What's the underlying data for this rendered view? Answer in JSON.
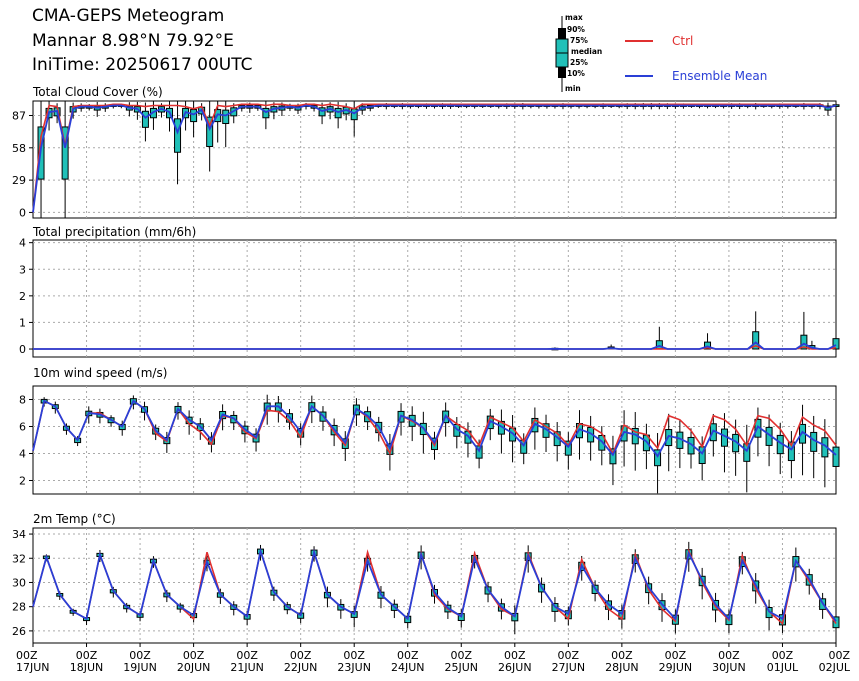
{
  "header": {
    "title": "CMA-GEPS Meteogram",
    "location": "Mannar 8.98°N 79.92°E",
    "init_time": "IniTime: 20250617 00UTC"
  },
  "legend": {
    "box_key": [
      "max",
      "90%",
      "75%",
      "median",
      "25%",
      "10%",
      "min"
    ],
    "ctrl_label": "Ctrl",
    "mean_label": "Ensemble Mean",
    "ctrl_color": "#e03030",
    "mean_color": "#2a3fd6",
    "box_color": "#20c0b8"
  },
  "chart_data": {
    "type": "line",
    "x_labels": [
      {
        "time": "00Z",
        "date": "17JUN"
      },
      {
        "time": "00Z",
        "date": "18JUN"
      },
      {
        "time": "00Z",
        "date": "19JUN"
      },
      {
        "time": "00Z",
        "date": "20JUN"
      },
      {
        "time": "00Z",
        "date": "21JUN"
      },
      {
        "time": "00Z",
        "date": "22JUN"
      },
      {
        "time": "00Z",
        "date": "23JUN"
      },
      {
        "time": "00Z",
        "date": "24JUN"
      },
      {
        "time": "00Z",
        "date": "25JUN"
      },
      {
        "time": "00Z",
        "date": "26JUN"
      },
      {
        "time": "00Z",
        "date": "27JUN"
      },
      {
        "time": "00Z",
        "date": "28JUN"
      },
      {
        "time": "00Z",
        "date": "29JUN"
      },
      {
        "time": "00Z",
        "date": "30JUN"
      },
      {
        "time": "00Z",
        "date": "01JUL"
      },
      {
        "time": "00Z",
        "date": "02JUL"
      }
    ],
    "panels": [
      {
        "title": "Total Cloud Cover (%)",
        "ylim": [
          -5,
          100
        ],
        "yticks": [
          0,
          29,
          58,
          87
        ],
        "ctrl": [
          0,
          68,
          96,
          95,
          60,
          95,
          96,
          96,
          96,
          96,
          97,
          97,
          96,
          96,
          95,
          96,
          96,
          96,
          96,
          95,
          93,
          95,
          78,
          96,
          95,
          96,
          97,
          97,
          97,
          96,
          97,
          97,
          96,
          96,
          97,
          97,
          96,
          97,
          96,
          95,
          93,
          97,
          97,
          97,
          97,
          97,
          97,
          97,
          97,
          97,
          97,
          97,
          97,
          97,
          97,
          97,
          97,
          97,
          97,
          97,
          97,
          97,
          97,
          97,
          97,
          97,
          97,
          97,
          97,
          97,
          97,
          97,
          97,
          97,
          97,
          97,
          97,
          97,
          97,
          97,
          97,
          97,
          97,
          97,
          97,
          97,
          97,
          97,
          97,
          97,
          97,
          97,
          97,
          97,
          97,
          97,
          97,
          97,
          97,
          94,
          96
        ],
        "mean": [
          0,
          58,
          90,
          91,
          58,
          93,
          95,
          95,
          94,
          95,
          96,
          96,
          94,
          93,
          85,
          90,
          93,
          90,
          72,
          90,
          88,
          92,
          75,
          88,
          87,
          91,
          95,
          95,
          95,
          90,
          93,
          94,
          95,
          94,
          96,
          95,
          91,
          93,
          90,
          92,
          89,
          94,
          95,
          96,
          96,
          96,
          96,
          96,
          96,
          96,
          96,
          96,
          96,
          96,
          96,
          96,
          96,
          96,
          96,
          96,
          96,
          96,
          96,
          96,
          96,
          96,
          96,
          96,
          96,
          96,
          96,
          96,
          96,
          96,
          96,
          96,
          96,
          96,
          96,
          96,
          96,
          96,
          96,
          96,
          96,
          96,
          96,
          96,
          96,
          96,
          96,
          96,
          96,
          96,
          96,
          96,
          96,
          96,
          96,
          94,
          96
        ]
      },
      {
        "title": "Total precipitation (mm/6h)",
        "ylim": [
          -0.3,
          4.1
        ],
        "yticks": [
          0,
          1,
          2,
          3,
          4
        ],
        "ctrl": [
          0,
          0,
          0,
          0,
          0,
          0,
          0,
          0,
          0,
          0,
          0,
          0,
          0,
          0,
          0,
          0,
          0,
          0,
          0,
          0,
          0,
          0,
          0,
          0,
          0,
          0,
          0,
          0,
          0,
          0,
          0,
          0,
          0,
          0,
          0,
          0,
          0,
          0,
          0,
          0,
          0,
          0,
          0,
          0,
          0,
          0,
          0,
          0,
          0,
          0,
          0,
          0,
          0,
          0,
          0,
          0,
          0,
          0,
          0,
          0,
          0,
          0,
          0,
          0,
          0,
          0,
          0,
          0,
          0,
          0,
          0,
          0,
          0.02,
          0,
          0,
          0,
          0,
          0,
          0.01,
          0,
          0,
          0,
          0,
          0,
          0.05,
          0,
          0,
          0,
          0,
          0,
          0.12,
          0,
          0,
          0,
          0,
          0,
          0.08,
          0,
          0,
          0,
          0.05
        ],
        "mean": [
          0,
          0,
          0,
          0,
          0,
          0,
          0,
          0,
          0,
          0,
          0,
          0,
          0,
          0,
          0,
          0,
          0,
          0,
          0,
          0,
          0,
          0,
          0,
          0,
          0,
          0,
          0,
          0,
          0,
          0,
          0,
          0,
          0,
          0,
          0,
          0,
          0,
          0,
          0,
          0,
          0,
          0,
          0,
          0,
          0,
          0,
          0,
          0,
          0,
          0,
          0,
          0,
          0,
          0,
          0,
          0,
          0,
          0,
          0,
          0,
          0,
          0,
          0,
          0,
          0,
          0.01,
          0,
          0,
          0,
          0,
          0,
          0,
          0.03,
          0,
          0,
          0,
          0,
          0,
          0.12,
          0,
          0,
          0,
          0,
          0,
          0.1,
          0,
          0,
          0,
          0,
          0,
          0.25,
          0,
          0,
          0,
          0,
          0,
          0.2,
          0.05,
          0,
          0,
          0.15
        ]
      },
      {
        "title": "10m wind speed (m/s)",
        "ylim": [
          1,
          9
        ],
        "yticks": [
          2,
          4,
          6,
          8
        ],
        "ctrl": [
          4.2,
          7.9,
          7.5,
          5.9,
          5.0,
          7.0,
          7.0,
          6.5,
          6.0,
          7.9,
          7.3,
          5.5,
          4.9,
          7.3,
          6.2,
          5.6,
          4.7,
          6.8,
          6.6,
          5.6,
          5.1,
          7.2,
          7.1,
          6.4,
          5.2,
          7.5,
          6.8,
          5.6,
          4.6,
          7.3,
          6.7,
          5.6,
          4.0,
          6.8,
          6.4,
          5.9,
          4.6,
          6.8,
          6.2,
          5.7,
          4.6,
          6.7,
          6.3,
          5.9,
          4.9,
          6.5,
          6.0,
          5.5,
          4.6,
          6.2,
          6.0,
          5.5,
          4.0,
          6.1,
          5.6,
          5.4,
          4.4,
          6.8,
          6.5,
          5.7,
          4.5,
          6.8,
          6.5,
          5.8,
          4.6,
          6.8,
          6.6,
          5.8,
          4.6,
          6.7,
          6.1,
          5.7,
          4.6
        ],
        "mean": [
          4.2,
          7.9,
          7.5,
          5.9,
          5.0,
          7.0,
          6.9,
          6.5,
          6.0,
          7.9,
          7.3,
          5.7,
          5.0,
          7.3,
          6.5,
          6.0,
          5.0,
          6.9,
          6.6,
          5.8,
          5.2,
          7.5,
          7.5,
          6.7,
          5.6,
          7.5,
          6.8,
          5.8,
          4.8,
          7.3,
          6.8,
          6.0,
          4.4,
          6.8,
          6.5,
          5.9,
          4.8,
          6.8,
          5.8,
          5.3,
          4.2,
          6.4,
          6.0,
          5.5,
          4.6,
          6.2,
          5.8,
          5.2,
          4.5,
          5.8,
          5.5,
          4.9,
          3.9,
          5.6,
          5.4,
          4.9,
          3.8,
          5.3,
          5.1,
          4.7,
          4.0,
          5.7,
          5.3,
          4.9,
          4.2,
          6.0,
          5.4,
          4.8,
          4.3,
          5.6,
          5.0,
          4.6,
          3.9
        ]
      },
      {
        "title": "2m Temp (°C)",
        "ylim": [
          25,
          34.5
        ],
        "yticks": [
          26,
          28,
          30,
          32,
          34
        ],
        "ctrl": [
          28.0,
          32.1,
          29.0,
          27.6,
          27.0,
          32.3,
          29.3,
          28.0,
          27.3,
          31.8,
          29.0,
          28.0,
          27.0,
          32.5,
          29.0,
          28.0,
          27.2,
          32.6,
          29.2,
          28.0,
          27.3,
          32.5,
          29.0,
          28.0,
          27.4,
          32.5,
          29.0,
          28.0,
          27.0,
          32.4,
          29.0,
          27.8,
          27.2,
          32.4,
          29.4,
          27.8,
          27.2,
          32.4,
          29.6,
          28.0,
          27.0,
          31.9,
          29.5,
          27.8,
          27.0,
          32.3,
          29.4,
          27.8,
          26.8,
          32.6,
          30.0,
          28.0,
          26.9,
          32.2,
          29.5,
          27.6,
          26.6,
          31.8,
          30.1,
          28.3,
          26.6
        ],
        "mean": [
          28.0,
          32.1,
          29.0,
          27.6,
          27.0,
          32.3,
          29.3,
          28.0,
          27.3,
          31.8,
          29.0,
          28.0,
          27.3,
          31.7,
          29.0,
          28.0,
          27.2,
          32.6,
          29.2,
          28.0,
          27.3,
          32.5,
          29.0,
          28.0,
          27.4,
          31.8,
          29.0,
          28.0,
          27.0,
          32.3,
          29.2,
          27.9,
          27.2,
          32.0,
          29.4,
          28.0,
          27.2,
          32.2,
          29.6,
          28.0,
          27.4,
          31.4,
          29.5,
          28.2,
          27.4,
          32.0,
          29.6,
          28.2,
          27.0,
          32.4,
          30.2,
          28.2,
          27.0,
          31.8,
          29.8,
          27.6,
          27.0,
          31.8,
          30.3,
          28.3,
          26.8
        ]
      }
    ]
  }
}
